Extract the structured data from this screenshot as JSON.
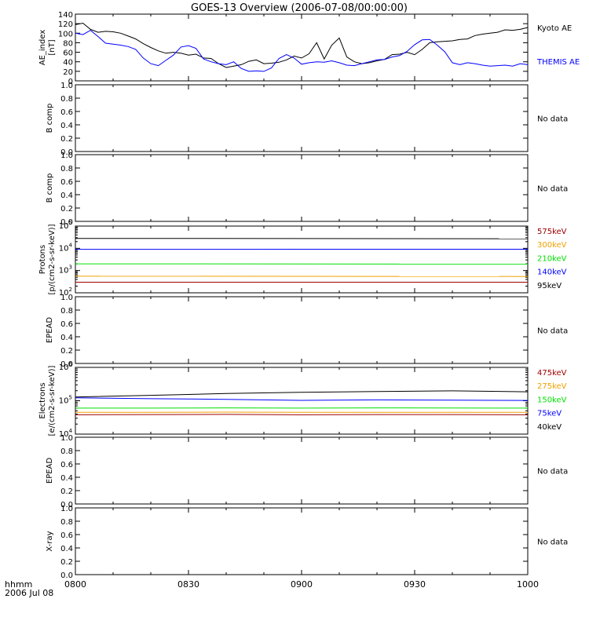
{
  "title": "GOES-13 Overview (2006-07-08/00:00:00)",
  "time_axis": {
    "tick_labels": [
      "0800",
      "0830",
      "0900",
      "0930",
      "1000"
    ],
    "format_label": "hhmm",
    "date_label": "2006 Jul 08"
  },
  "colors": {
    "black": "#000000",
    "blue": "#0000ff",
    "green": "#00e000",
    "orange": "#f0a000",
    "darkred": "#a00000"
  },
  "chart_data": [
    {
      "type": "line",
      "ylabel": "AE_index",
      "unit": "[nT]",
      "ylim": [
        0,
        140
      ],
      "yticks": [
        "0",
        "20",
        "40",
        "60",
        "80",
        "100",
        "120",
        "140"
      ],
      "x_unit": "minutes after 0800",
      "series": [
        {
          "name": "Kyoto AE",
          "color": "#000000",
          "x": [
            0,
            2,
            4,
            6,
            8,
            10,
            12,
            14,
            16,
            18,
            20,
            22,
            24,
            26,
            28,
            30,
            32,
            34,
            36,
            38,
            40,
            42,
            44,
            46,
            48,
            50,
            52,
            54,
            56,
            58,
            60,
            62,
            64,
            66,
            68,
            70,
            72,
            74,
            76,
            78,
            80,
            82,
            84,
            86,
            88,
            90,
            92,
            94,
            96,
            98,
            100,
            102,
            104,
            106,
            108,
            110,
            112,
            114,
            116,
            118,
            120
          ],
          "values": [
            118,
            121,
            108,
            102,
            104,
            103,
            100,
            94,
            88,
            78,
            70,
            63,
            58,
            60,
            58,
            54,
            56,
            48,
            47,
            36,
            28,
            31,
            34,
            41,
            44,
            36,
            37,
            39,
            44,
            52,
            48,
            57,
            80,
            46,
            75,
            90,
            50,
            40,
            36,
            38,
            42,
            45,
            55,
            56,
            60,
            55,
            66,
            80,
            82,
            83,
            84,
            87,
            88,
            95,
            98,
            100,
            102,
            107,
            106,
            108,
            112
          ]
        },
        {
          "name": "THEMIS AE",
          "color": "#0000ff",
          "x": [
            0,
            2,
            4,
            6,
            8,
            10,
            12,
            14,
            16,
            18,
            20,
            22,
            24,
            26,
            28,
            30,
            32,
            34,
            36,
            38,
            40,
            42,
            44,
            46,
            48,
            50,
            52,
            54,
            56,
            58,
            60,
            62,
            64,
            66,
            68,
            70,
            72,
            74,
            76,
            78,
            80,
            82,
            84,
            86,
            88,
            90,
            92,
            94,
            96,
            98,
            100,
            102,
            104,
            106,
            108,
            110,
            112,
            114,
            116,
            118,
            120
          ],
          "values": [
            100,
            97,
            106,
            93,
            79,
            77,
            75,
            72,
            66,
            48,
            36,
            32,
            43,
            54,
            71,
            74,
            68,
            46,
            40,
            36,
            34,
            40,
            26,
            20,
            21,
            20,
            27,
            47,
            55,
            48,
            35,
            38,
            40,
            39,
            42,
            38,
            33,
            32,
            36,
            40,
            44,
            45,
            50,
            53,
            62,
            76,
            86,
            87,
            75,
            61,
            38,
            34,
            38,
            36,
            33,
            31,
            32,
            33,
            31,
            36,
            34
          ]
        }
      ]
    },
    {
      "type": "line",
      "ylabel": "B comp",
      "ylim": [
        0,
        1
      ],
      "yticks": [
        "0.0",
        "0.2",
        "0.4",
        "0.6",
        "0.8",
        "1.0"
      ],
      "note": "No data"
    },
    {
      "type": "line",
      "ylabel": "B comp",
      "ylim": [
        0,
        1
      ],
      "yticks": [
        "0.0",
        "0.2",
        "0.4",
        "0.6",
        "0.8",
        "1.0"
      ],
      "note": "No data"
    },
    {
      "type": "line",
      "ylabel": "Protons",
      "unit": "[p/(cm2-s-sr-keV)]",
      "yscale": "log",
      "ylim": [
        100,
        100000
      ],
      "ytick_exponents": [
        "2",
        "3",
        "4",
        "5"
      ],
      "x": [
        0,
        120
      ],
      "series": [
        {
          "name": "575keV",
          "color": "#a00000",
          "values": [
            300,
            300
          ]
        },
        {
          "name": "300keV",
          "color": "#f0a000",
          "values": [
            560,
            540
          ]
        },
        {
          "name": "210keV",
          "color": "#00e000",
          "values": [
            2000,
            1950
          ]
        },
        {
          "name": "140keV",
          "color": "#0000ff",
          "values": [
            9000,
            9100
          ]
        },
        {
          "name": "95keV",
          "color": "#000000",
          "values": [
            28000,
            27000
          ]
        }
      ]
    },
    {
      "type": "line",
      "ylabel": "EPEAD",
      "ylim": [
        0,
        1
      ],
      "yticks": [
        "0.0",
        "0.2",
        "0.4",
        "0.6",
        "0.8",
        "1.0"
      ],
      "note": "No data"
    },
    {
      "type": "line",
      "ylabel": "Electrons",
      "unit": "[e/(cm2-s-sr-keV)]",
      "yscale": "log",
      "ylim": [
        10000,
        1000000
      ],
      "ytick_exponents": [
        "4",
        "5",
        "6"
      ],
      "x": [
        0,
        20,
        40,
        60,
        80,
        100,
        120
      ],
      "series": [
        {
          "name": "475keV",
          "color": "#a00000",
          "values": [
            38000,
            38500,
            39000,
            38000,
            38500,
            38500,
            38000
          ]
        },
        {
          "name": "275keV",
          "color": "#f0a000",
          "values": [
            45000,
            45000,
            45500,
            45000,
            45000,
            45000,
            45000
          ]
        },
        {
          "name": "150keV",
          "color": "#00e000",
          "values": [
            60000,
            60000,
            61000,
            60000,
            61000,
            60500,
            60000
          ]
        },
        {
          "name": "75keV",
          "color": "#0000ff",
          "values": [
            122000,
            115000,
            110000,
            103000,
            106000,
            104000,
            102000
          ]
        },
        {
          "name": "40keV",
          "color": "#000000",
          "values": [
            130000,
            145000,
            165000,
            180000,
            190000,
            198000,
            185000
          ]
        }
      ]
    },
    {
      "type": "line",
      "ylabel": "EPEAD",
      "ylim": [
        0,
        1
      ],
      "yticks": [
        "0.0",
        "0.2",
        "0.4",
        "0.6",
        "0.8",
        "1.0"
      ],
      "note": "No data"
    },
    {
      "type": "line",
      "ylabel": "X-ray",
      "ylim": [
        0,
        1
      ],
      "yticks": [
        "0.0",
        "0.2",
        "0.4",
        "0.6",
        "0.8",
        "1.0"
      ],
      "note": "No data"
    }
  ]
}
